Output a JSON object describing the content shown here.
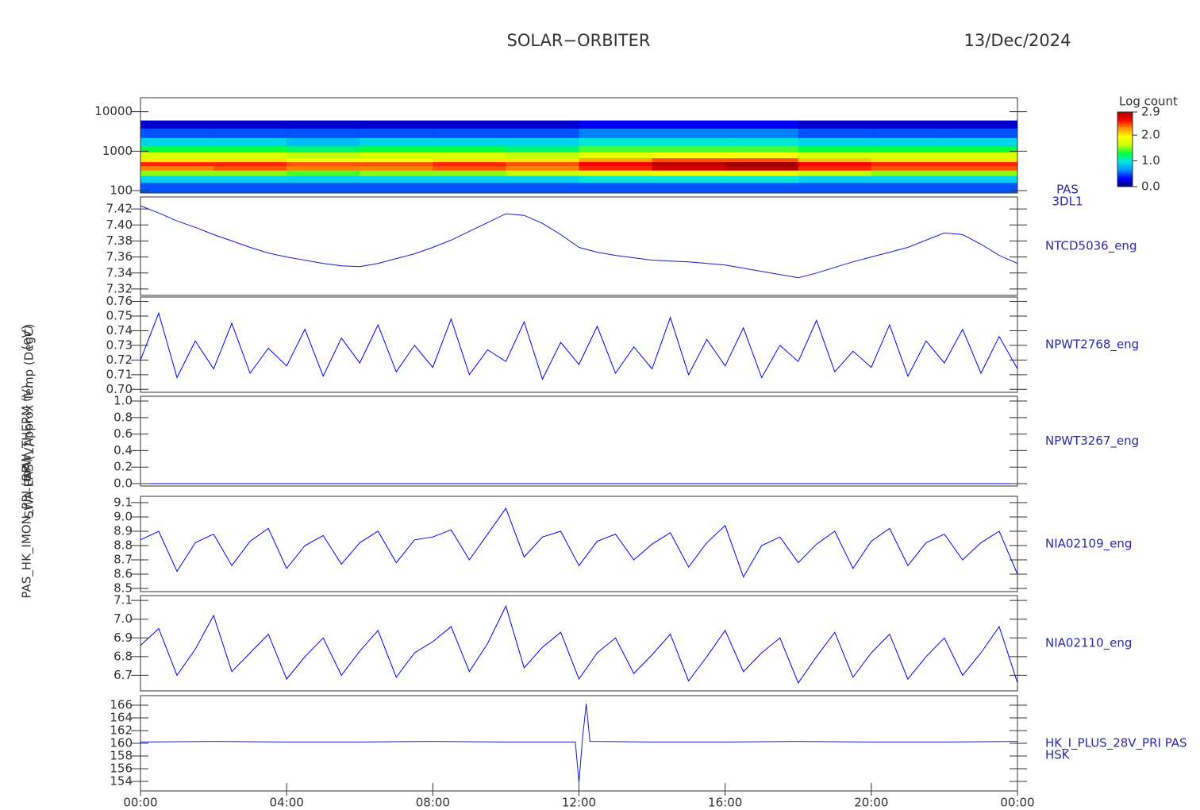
{
  "title": "SOLAR−ORBITER",
  "date": "13/Dec/2024",
  "axis_titles": [
    "(eV)",
    "Approx Temp (DegC)",
    "RPW_THERM (V)",
    "SWA-EAS (V)",
    "PAS_HK_IMON_PRI (mA)"
  ],
  "time_axis": {
    "xlim": [
      0,
      24
    ],
    "xticks": [
      {
        "value": 0,
        "label": "00:00"
      },
      {
        "value": 4,
        "label": "04:00"
      },
      {
        "value": 8,
        "label": "08:00"
      },
      {
        "value": 12,
        "label": "12:00"
      },
      {
        "value": 16,
        "label": "16:00"
      },
      {
        "value": 20,
        "label": "20:00"
      },
      {
        "value": 24,
        "label": "00:00"
      }
    ]
  },
  "chart_data": [
    {
      "type": "heatmap",
      "label": [
        "PAS",
        "3DL1"
      ],
      "log": true,
      "ylim": [
        87,
        22700
      ],
      "yticks": [
        100,
        1000,
        10000
      ],
      "time_edges": [
        0,
        2,
        4,
        6,
        8,
        10,
        12,
        14,
        16,
        18,
        20,
        22,
        24
      ],
      "energy_edges": [
        87,
        160,
        240,
        330,
        430,
        540,
        680,
        950,
        1350,
        2200,
        3800,
        6000
      ],
      "z": [
        [
          0.5,
          0.5,
          0.5,
          0.5,
          0.5,
          0.5,
          0.5,
          0.5,
          0.5,
          0.5,
          0.5,
          0.5
        ],
        [
          0.9,
          0.9,
          0.9,
          0.9,
          0.9,
          0.9,
          1.0,
          1.0,
          1.0,
          0.9,
          0.9,
          0.9
        ],
        [
          1.5,
          1.5,
          1.4,
          1.5,
          1.5,
          1.6,
          1.7,
          1.8,
          1.8,
          1.6,
          1.5,
          1.5
        ],
        [
          2.3,
          2.4,
          2.3,
          2.3,
          2.4,
          2.3,
          2.5,
          2.7,
          2.8,
          2.5,
          2.4,
          2.4
        ],
        [
          2.5,
          2.5,
          2.4,
          2.4,
          2.5,
          2.4,
          2.6,
          2.8,
          2.9,
          2.6,
          2.5,
          2.5
        ],
        [
          2.0,
          2.0,
          1.9,
          1.9,
          2.0,
          2.0,
          2.2,
          2.4,
          2.4,
          2.1,
          2.0,
          2.0
        ],
        [
          1.7,
          1.7,
          1.6,
          1.7,
          1.7,
          1.6,
          1.8,
          1.9,
          1.9,
          1.7,
          1.7,
          1.7
        ],
        [
          1.3,
          1.3,
          1.2,
          1.3,
          1.3,
          1.2,
          1.4,
          1.4,
          1.4,
          1.3,
          1.3,
          1.3
        ],
        [
          0.9,
          0.9,
          0.8,
          0.9,
          0.9,
          0.9,
          1.0,
          1.0,
          1.0,
          0.9,
          0.9,
          0.9
        ],
        [
          0.5,
          0.5,
          0.5,
          0.5,
          0.5,
          0.5,
          0.6,
          0.6,
          0.6,
          0.5,
          0.5,
          0.5
        ],
        [
          0.2,
          0.2,
          0.2,
          0.2,
          0.2,
          0.2,
          0.3,
          0.3,
          0.3,
          0.2,
          0.2,
          0.2
        ]
      ],
      "zlim": [
        0,
        2.9
      ],
      "colorbar_title": "Log count",
      "colorbar_ticks": [
        {
          "value": 0,
          "label": "0.0"
        },
        {
          "value": 1,
          "label": "1.0"
        },
        {
          "value": 2,
          "label": "2.0"
        },
        2.9
      ],
      "colorscale": [
        "#00007f",
        "#0000ff",
        "#0096ff",
        "#00e6e6",
        "#00ff40",
        "#c8ff00",
        "#ffff00",
        "#ff9600",
        "#ff0000",
        "#a00000"
      ]
    },
    {
      "type": "line",
      "label": [
        "NTCD5036_eng"
      ],
      "color": "#1a1acc",
      "ylim": [
        7.312,
        7.435
      ],
      "yticks": [
        7.32,
        7.34,
        7.36,
        7.38,
        {
          "value": 7.4,
          "label": "7.40"
        },
        7.42
      ],
      "x": [
        0,
        0.5,
        1,
        1.5,
        2,
        2.5,
        3,
        3.5,
        4,
        4.5,
        5,
        5.5,
        6,
        6.5,
        7,
        7.5,
        8,
        8.5,
        9,
        9.5,
        10,
        10.5,
        11,
        11.5,
        12,
        12.5,
        13,
        13.5,
        14,
        14.5,
        15,
        15.5,
        16,
        16.5,
        17,
        17.5,
        18,
        18.5,
        19,
        19.5,
        20,
        20.5,
        21,
        21.5,
        22,
        22.5,
        23,
        23.5,
        24
      ],
      "values": [
        7.424,
        7.415,
        7.405,
        7.397,
        7.388,
        7.38,
        7.372,
        7.365,
        7.36,
        7.356,
        7.352,
        7.349,
        7.348,
        7.352,
        7.358,
        7.364,
        7.372,
        7.381,
        7.392,
        7.403,
        7.414,
        7.412,
        7.402,
        7.388,
        7.372,
        7.366,
        7.362,
        7.359,
        7.356,
        7.355,
        7.354,
        7.352,
        7.35,
        7.346,
        7.342,
        7.338,
        7.334,
        7.34,
        7.347,
        7.354,
        7.36,
        7.366,
        7.372,
        7.381,
        7.39,
        7.388,
        7.376,
        7.362,
        7.352
      ]
    },
    {
      "type": "line",
      "label": [
        "NPWT2768_eng"
      ],
      "color": "#0000ff",
      "ylim": [
        0.698,
        0.763
      ],
      "yticks": [
        {
          "value": 0.7,
          "label": "0.70"
        },
        0.71,
        0.72,
        0.73,
        0.74,
        0.75,
        0.76
      ],
      "x": [
        0,
        0.5,
        1,
        1.5,
        2,
        2.5,
        3,
        3.5,
        4,
        4.5,
        5,
        5.5,
        6,
        6.5,
        7,
        7.5,
        8,
        8.5,
        9,
        9.5,
        10,
        10.5,
        11,
        11.5,
        12,
        12.5,
        13,
        13.5,
        14,
        14.5,
        15,
        15.5,
        16,
        16.5,
        17,
        17.5,
        18,
        18.5,
        19,
        19.5,
        20,
        20.5,
        21,
        21.5,
        22,
        22.5,
        23,
        23.5,
        24
      ],
      "values": [
        0.72,
        0.752,
        0.708,
        0.733,
        0.714,
        0.745,
        0.711,
        0.728,
        0.716,
        0.741,
        0.709,
        0.735,
        0.718,
        0.744,
        0.712,
        0.73,
        0.715,
        0.748,
        0.71,
        0.727,
        0.719,
        0.746,
        0.707,
        0.732,
        0.717,
        0.743,
        0.711,
        0.729,
        0.714,
        0.749,
        0.71,
        0.734,
        0.716,
        0.742,
        0.708,
        0.73,
        0.719,
        0.747,
        0.712,
        0.726,
        0.715,
        0.744,
        0.709,
        0.733,
        0.718,
        0.741,
        0.711,
        0.736,
        0.714
      ]
    },
    {
      "type": "line",
      "label": [
        "NPWT3267_eng"
      ],
      "color": "#0000ff",
      "ylim": [
        -0.029,
        1.058
      ],
      "yticks": [
        {
          "value": 0,
          "label": "0.0"
        },
        0.2,
        0.4,
        0.6,
        0.8,
        {
          "value": 1,
          "label": "1.0"
        }
      ],
      "x": [
        0,
        24
      ],
      "values": [
        0,
        0
      ]
    },
    {
      "type": "line",
      "label": [
        "NIA02109_eng"
      ],
      "color": "#0000ff",
      "ylim": [
        8.478,
        9.144
      ],
      "yticks": [
        8.5,
        8.6,
        8.7,
        8.8,
        8.9,
        {
          "value": 9,
          "label": "9.0"
        },
        9.1
      ],
      "x": [
        0,
        0.5,
        1,
        1.5,
        2,
        2.5,
        3,
        3.5,
        4,
        4.5,
        5,
        5.5,
        6,
        6.5,
        7,
        7.5,
        8,
        8.5,
        9,
        9.5,
        10,
        10.5,
        11,
        11.5,
        12,
        12.5,
        13,
        13.5,
        14,
        14.5,
        15,
        15.5,
        16,
        16.5,
        17,
        17.5,
        18,
        18.5,
        19,
        19.5,
        20,
        20.5,
        21,
        21.5,
        22,
        22.5,
        23,
        23.5,
        24
      ],
      "values": [
        8.84,
        8.9,
        8.62,
        8.82,
        8.88,
        8.66,
        8.83,
        8.92,
        8.64,
        8.8,
        8.87,
        8.67,
        8.82,
        8.9,
        8.68,
        8.84,
        8.86,
        8.91,
        8.7,
        8.88,
        9.06,
        8.72,
        8.86,
        8.9,
        8.66,
        8.83,
        8.88,
        8.7,
        8.81,
        8.89,
        8.65,
        8.82,
        8.94,
        8.58,
        8.8,
        8.86,
        8.68,
        8.81,
        8.9,
        8.64,
        8.83,
        8.92,
        8.66,
        8.82,
        8.88,
        8.7,
        8.82,
        8.9,
        8.6
      ]
    },
    {
      "type": "line",
      "label": [
        "NIA02110_eng"
      ],
      "color": "#0000ff",
      "ylim": [
        6.617,
        7.126
      ],
      "yticks": [
        6.7,
        6.8,
        6.9,
        {
          "value": 7,
          "label": "7.0"
        },
        7.1
      ],
      "x": [
        0,
        0.5,
        1,
        1.5,
        2,
        2.5,
        3,
        3.5,
        4,
        4.5,
        5,
        5.5,
        6,
        6.5,
        7,
        7.5,
        8,
        8.5,
        9,
        9.5,
        10,
        10.5,
        11,
        11.5,
        12,
        12.5,
        13,
        13.5,
        14,
        14.5,
        15,
        15.5,
        16,
        16.5,
        17,
        17.5,
        18,
        18.5,
        19,
        19.5,
        20,
        20.5,
        21,
        21.5,
        22,
        22.5,
        23,
        23.5,
        24
      ],
      "values": [
        6.86,
        6.95,
        6.7,
        6.84,
        7.02,
        6.72,
        6.82,
        6.92,
        6.68,
        6.8,
        6.9,
        6.7,
        6.83,
        6.94,
        6.69,
        6.82,
        6.88,
        6.96,
        6.72,
        6.87,
        7.07,
        6.74,
        6.85,
        6.93,
        6.68,
        6.82,
        6.9,
        6.71,
        6.81,
        6.92,
        6.67,
        6.8,
        6.94,
        6.72,
        6.82,
        6.9,
        6.66,
        6.8,
        6.93,
        6.69,
        6.82,
        6.92,
        6.68,
        6.8,
        6.9,
        6.7,
        6.82,
        6.96,
        6.66
      ]
    },
    {
      "type": "line",
      "label": [
        "HK_I_PLUS_28V_PRI PAS",
        "HSK"
      ],
      "color": "#1a1acc",
      "ylim": [
        152.5,
        167.5
      ],
      "yticks": [
        154,
        156,
        158,
        160,
        162,
        164,
        166
      ],
      "x": [
        0,
        2,
        4,
        6,
        8,
        10,
        11.9,
        12,
        12.1,
        12.2,
        12.3,
        14,
        16,
        18,
        20,
        22,
        24
      ],
      "values": [
        160.2,
        160.3,
        160.2,
        160.2,
        160.3,
        160.2,
        160.2,
        153.8,
        161,
        166.2,
        160.3,
        160.2,
        160.2,
        160.3,
        160.2,
        160.2,
        160.3
      ]
    }
  ]
}
